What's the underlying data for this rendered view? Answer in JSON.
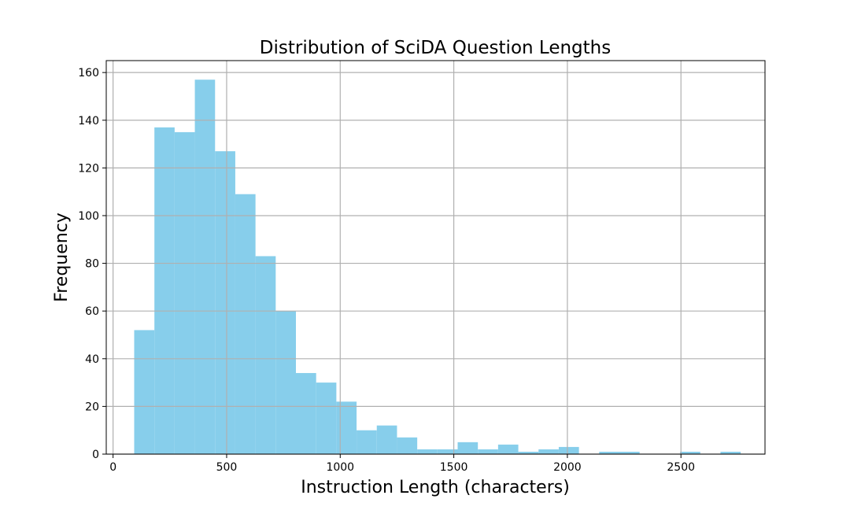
{
  "chart_data": {
    "type": "bar",
    "title": "Distribution of SciDA Question Lengths",
    "xlabel": "Instruction Length (characters)",
    "ylabel": "Frequency",
    "bins": [
      {
        "start": 93,
        "end": 182,
        "count": 52
      },
      {
        "start": 182,
        "end": 271,
        "count": 137
      },
      {
        "start": 271,
        "end": 360,
        "count": 135
      },
      {
        "start": 360,
        "end": 449,
        "count": 157
      },
      {
        "start": 449,
        "end": 538,
        "count": 127
      },
      {
        "start": 538,
        "end": 627,
        "count": 109
      },
      {
        "start": 627,
        "end": 716,
        "count": 83
      },
      {
        "start": 716,
        "end": 805,
        "count": 60
      },
      {
        "start": 805,
        "end": 894,
        "count": 34
      },
      {
        "start": 894,
        "end": 983,
        "count": 30
      },
      {
        "start": 983,
        "end": 1072,
        "count": 22
      },
      {
        "start": 1072,
        "end": 1161,
        "count": 10
      },
      {
        "start": 1161,
        "end": 1250,
        "count": 12
      },
      {
        "start": 1250,
        "end": 1339,
        "count": 7
      },
      {
        "start": 1339,
        "end": 1428,
        "count": 2
      },
      {
        "start": 1428,
        "end": 1517,
        "count": 2
      },
      {
        "start": 1517,
        "end": 1606,
        "count": 5
      },
      {
        "start": 1606,
        "end": 1695,
        "count": 2
      },
      {
        "start": 1695,
        "end": 1784,
        "count": 4
      },
      {
        "start": 1784,
        "end": 1873,
        "count": 1
      },
      {
        "start": 1873,
        "end": 1962,
        "count": 2
      },
      {
        "start": 1962,
        "end": 2051,
        "count": 3
      },
      {
        "start": 2051,
        "end": 2140,
        "count": 0
      },
      {
        "start": 2140,
        "end": 2229,
        "count": 1
      },
      {
        "start": 2229,
        "end": 2318,
        "count": 1
      },
      {
        "start": 2318,
        "end": 2407,
        "count": 0
      },
      {
        "start": 2407,
        "end": 2496,
        "count": 0
      },
      {
        "start": 2496,
        "end": 2585,
        "count": 1
      },
      {
        "start": 2585,
        "end": 2674,
        "count": 0
      },
      {
        "start": 2674,
        "end": 2763,
        "count": 1
      }
    ],
    "xlim": [
      -30,
      2870
    ],
    "ylim": [
      0,
      165
    ],
    "xticks": [
      0,
      500,
      1000,
      1500,
      2000,
      2500
    ],
    "yticks": [
      0,
      20,
      40,
      60,
      80,
      100,
      120,
      140,
      160
    ],
    "grid": true,
    "bar_color": "#87ceeb",
    "grid_color": "#b0b0b0"
  }
}
